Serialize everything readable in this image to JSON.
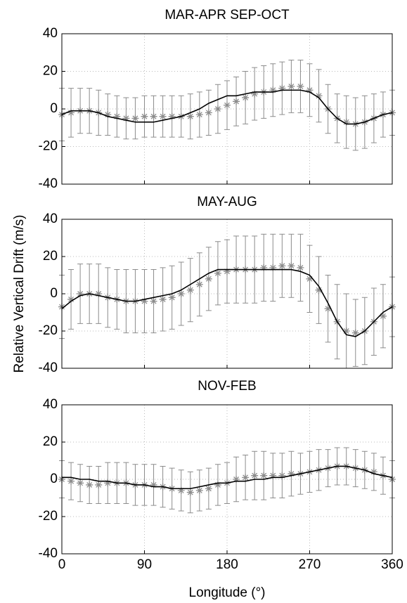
{
  "ylabel": "Relative Vertical Drift (m/s)",
  "chart_data": [
    {
      "type": "errorbar-line",
      "title": "MAR-APR SEP-OCT",
      "x": [
        0,
        10,
        20,
        30,
        40,
        50,
        60,
        70,
        80,
        90,
        100,
        110,
        120,
        130,
        140,
        150,
        160,
        170,
        180,
        190,
        200,
        210,
        220,
        230,
        240,
        250,
        260,
        270,
        280,
        290,
        300,
        310,
        320,
        330,
        340,
        350,
        360
      ],
      "series": [
        {
          "color": "#8c8c8c",
          "marker": "asterisk",
          "values": [
            -3,
            -2,
            -1,
            -1,
            -2,
            -3,
            -4,
            -5,
            -5,
            -4,
            -4,
            -4,
            -4,
            -4,
            -4,
            -3,
            -2,
            0,
            2,
            4,
            6,
            8,
            9,
            10,
            11,
            12,
            12,
            10,
            7,
            0,
            -5,
            -7,
            -8,
            -7,
            -5,
            -3,
            -2
          ],
          "errors": [
            14,
            13,
            12,
            12,
            12,
            11,
            11,
            11,
            11,
            11,
            11,
            11,
            11,
            11,
            12,
            12,
            12,
            13,
            13,
            13,
            14,
            14,
            14,
            14,
            14,
            14,
            14,
            14,
            14,
            13,
            13,
            14,
            14,
            14,
            13,
            12,
            12
          ]
        },
        {
          "color": "#000000",
          "marker": "line",
          "values": [
            -3,
            -1,
            -1,
            -1,
            -2,
            -4,
            -5,
            -6,
            -7,
            -7,
            -7,
            -6,
            -5,
            -4,
            -2,
            0,
            3,
            5,
            7,
            7,
            8,
            9,
            9,
            9,
            10,
            10,
            10,
            9,
            6,
            0,
            -5,
            -8,
            -8,
            -7,
            -5,
            -3,
            -2
          ]
        }
      ],
      "xlim": [
        0,
        360
      ],
      "xticks": [
        0,
        90,
        180,
        270,
        360
      ],
      "ylim": [
        -40,
        40
      ],
      "yticks": [
        -40,
        -20,
        0,
        20,
        40
      ],
      "grid": true
    },
    {
      "type": "errorbar-line",
      "title": "MAY-AUG",
      "x": [
        0,
        10,
        20,
        30,
        40,
        50,
        60,
        70,
        80,
        90,
        100,
        110,
        120,
        130,
        140,
        150,
        160,
        170,
        180,
        190,
        200,
        210,
        220,
        230,
        240,
        250,
        260,
        270,
        280,
        290,
        300,
        310,
        320,
        330,
        340,
        350,
        360
      ],
      "series": [
        {
          "color": "#8c8c8c",
          "marker": "asterisk",
          "values": [
            -7,
            -3,
            0,
            0,
            0,
            -2,
            -3,
            -4,
            -4,
            -4,
            -4,
            -3,
            -2,
            0,
            2,
            5,
            8,
            11,
            12,
            13,
            13,
            13,
            14,
            14,
            15,
            15,
            14,
            8,
            2,
            -8,
            -15,
            -20,
            -21,
            -20,
            -15,
            -12,
            -7
          ],
          "errors": [
            17,
            16,
            16,
            16,
            16,
            16,
            16,
            17,
            17,
            17,
            17,
            17,
            17,
            17,
            17,
            17,
            17,
            17,
            17,
            18,
            18,
            18,
            18,
            18,
            17,
            17,
            18,
            18,
            18,
            18,
            20,
            20,
            18,
            18,
            18,
            17,
            16
          ]
        },
        {
          "color": "#000000",
          "marker": "line",
          "values": [
            -8,
            -4,
            -1,
            0,
            -1,
            -2,
            -3,
            -4,
            -4,
            -3,
            -2,
            -1,
            0,
            2,
            5,
            8,
            11,
            13,
            13,
            13,
            13,
            13,
            13,
            13,
            13,
            13,
            12,
            10,
            4,
            -5,
            -15,
            -22,
            -23,
            -20,
            -15,
            -10,
            -7
          ]
        }
      ],
      "xlim": [
        0,
        360
      ],
      "xticks": [
        0,
        90,
        180,
        270,
        360
      ],
      "ylim": [
        -40,
        40
      ],
      "yticks": [
        -40,
        -20,
        0,
        20,
        40
      ],
      "grid": true
    },
    {
      "type": "errorbar-line",
      "title": "NOV-FEB",
      "xlabel": "Longitude (°)",
      "x": [
        0,
        10,
        20,
        30,
        40,
        50,
        60,
        70,
        80,
        90,
        100,
        110,
        120,
        130,
        140,
        150,
        160,
        170,
        180,
        190,
        200,
        210,
        220,
        230,
        240,
        250,
        260,
        270,
        280,
        290,
        300,
        310,
        320,
        330,
        340,
        350,
        360
      ],
      "series": [
        {
          "color": "#8c8c8c",
          "marker": "asterisk",
          "values": [
            0,
            -1,
            -2,
            -3,
            -3,
            -2,
            -2,
            -2,
            -3,
            -3,
            -3,
            -4,
            -5,
            -6,
            -7,
            -6,
            -5,
            -3,
            -2,
            0,
            1,
            2,
            2,
            2,
            2,
            3,
            3,
            4,
            5,
            6,
            7,
            7,
            6,
            5,
            4,
            2,
            0
          ],
          "errors": [
            10,
            10,
            10,
            10,
            10,
            11,
            11,
            11,
            11,
            11,
            11,
            11,
            11,
            11,
            11,
            11,
            11,
            11,
            11,
            12,
            12,
            13,
            13,
            12,
            12,
            12,
            11,
            11,
            11,
            10,
            10,
            10,
            10,
            10,
            10,
            10,
            10
          ]
        },
        {
          "color": "#000000",
          "marker": "line",
          "values": [
            1,
            1,
            0,
            0,
            -1,
            -1,
            -2,
            -2,
            -3,
            -3,
            -4,
            -4,
            -5,
            -5,
            -5,
            -4,
            -3,
            -2,
            -2,
            -1,
            -1,
            0,
            0,
            1,
            1,
            2,
            3,
            4,
            5,
            6,
            7,
            7,
            6,
            5,
            3,
            2,
            1
          ]
        }
      ],
      "xlim": [
        0,
        360
      ],
      "xticks": [
        0,
        90,
        180,
        270,
        360
      ],
      "ylim": [
        -40,
        40
      ],
      "yticks": [
        -40,
        -20,
        0,
        20,
        40
      ],
      "grid": true
    }
  ]
}
